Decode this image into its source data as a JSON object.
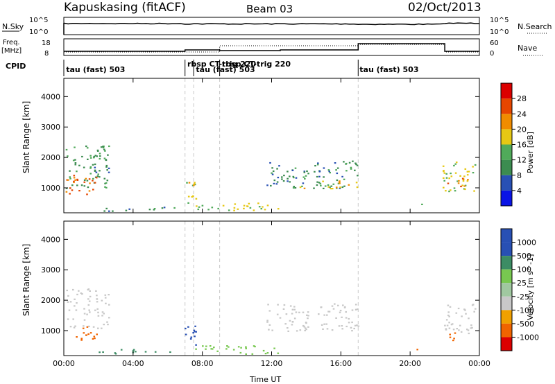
{
  "header": {
    "station": "Kapuskasing (fitACF)",
    "beam": "Beam 03",
    "date": "02/Oct/2013"
  },
  "strip_panels": {
    "nsky": {
      "label": "N.Sky",
      "ticks": [
        "10^5",
        "10^0"
      ]
    },
    "nsearch": {
      "label": "N.Search",
      "ticks": [
        "10^5",
        "10^0"
      ]
    },
    "freq": {
      "label_line1": "Freq.",
      "label_line2": "[MHz]",
      "ticks": [
        "18",
        "8"
      ]
    },
    "nave": {
      "label": "Nave",
      "ticks": [
        "60",
        "0"
      ]
    },
    "cpid": {
      "label": "CPID"
    }
  },
  "cpid_labels": [
    {
      "text": "tau (fast) 503",
      "hour": 0.05
    },
    {
      "text": "rbsp CT-trig 220",
      "hour": 7.05
    },
    {
      "text": "tau (fast) 503",
      "hour": 7.55
    },
    {
      "text": "rbsp CT-trig 220",
      "hour": 9.05
    },
    {
      "text": "tau (fast) 503",
      "hour": 17.0
    }
  ],
  "cpid_boundaries_hours": [
    7.0,
    7.5,
    9.0,
    17.0
  ],
  "colors": {
    "grey_line": "#c8c8c8",
    "power_scale": [
      "#0a14e6",
      "#2850b4",
      "#3c8c50",
      "#50aa5a",
      "#e6c814",
      "#f08c00",
      "#e64600",
      "#dc0000"
    ],
    "velocity_scale": [
      "#dc0000",
      "#f06400",
      "#f0a000",
      "#c8c8c8",
      "#a0c8a0",
      "#78c850",
      "#3c8c64",
      "#2850b4"
    ]
  },
  "chart_data": [
    {
      "type": "heatmap",
      "name": "power",
      "title": "",
      "xlabel": "",
      "ylabel": "Slant Range [km]",
      "xlim": [
        "00:00",
        "24:00"
      ],
      "ylim": [
        180,
        4600
      ],
      "x_ticks": [
        "00:00",
        "04:00",
        "08:00",
        "12:00",
        "16:00",
        "20:00",
        "00:00"
      ],
      "y_ticks": [
        1000,
        2000,
        3000,
        4000
      ],
      "colorbar": {
        "label": "Power [dB]",
        "min": 0,
        "max": 32,
        "ticks": [
          4,
          8,
          12,
          16,
          20,
          24,
          28
        ]
      },
      "blobs": [
        {
          "t0": 0.1,
          "t1": 2.6,
          "r0": 1000,
          "r1": 2400,
          "v": 12
        },
        {
          "t0": 0.1,
          "t1": 2.0,
          "r0": 800,
          "r1": 1500,
          "v": 24
        },
        {
          "t0": 1.6,
          "t1": 2.6,
          "r0": 1500,
          "r1": 2100,
          "v": 8
        },
        {
          "t0": 2.0,
          "t1": 6.5,
          "r0": 250,
          "r1": 400,
          "v": 10
        },
        {
          "t0": 6.8,
          "t1": 7.6,
          "r0": 500,
          "r1": 1300,
          "v": 18
        },
        {
          "t0": 7.5,
          "t1": 12.5,
          "r0": 250,
          "r1": 550,
          "v": 16
        },
        {
          "t0": 11.7,
          "t1": 17.0,
          "r0": 1000,
          "r1": 1900,
          "v": 10
        },
        {
          "t0": 13.5,
          "t1": 17.0,
          "r0": 1000,
          "r1": 1300,
          "v": 18
        },
        {
          "t0": 20.3,
          "t1": 20.9,
          "r0": 400,
          "r1": 500,
          "v": 12
        },
        {
          "t0": 21.8,
          "t1": 23.8,
          "r0": 900,
          "r1": 1900,
          "v": 16
        },
        {
          "t0": 22.0,
          "t1": 23.5,
          "r0": 1000,
          "r1": 1400,
          "v": 22
        }
      ]
    },
    {
      "type": "heatmap",
      "name": "velocity",
      "title": "",
      "xlabel": "Time UT",
      "ylabel": "Slant Range [km]",
      "xlim": [
        "00:00",
        "24:00"
      ],
      "ylim": [
        180,
        4600
      ],
      "x_ticks": [
        "00:00",
        "04:00",
        "08:00",
        "12:00",
        "16:00",
        "20:00",
        "00:00"
      ],
      "y_ticks": [
        1000,
        2000,
        3000,
        4000
      ],
      "colorbar": {
        "label": "Velocity [m s^-1]",
        "ticks": [
          "1000",
          "500",
          "100",
          "25",
          "-25",
          "-100",
          "-500",
          "-1000"
        ]
      },
      "blobs": [
        {
          "t0": 0.1,
          "t1": 2.6,
          "r0": 1100,
          "r1": 2400,
          "v": 3
        },
        {
          "t0": 0.5,
          "t1": 2.0,
          "r0": 700,
          "r1": 1200,
          "v": 1
        },
        {
          "t0": 2.0,
          "t1": 6.5,
          "r0": 250,
          "r1": 400,
          "v": 6
        },
        {
          "t0": 6.8,
          "t1": 7.6,
          "r0": 500,
          "r1": 1300,
          "v": 7
        },
        {
          "t0": 7.5,
          "t1": 12.5,
          "r0": 250,
          "r1": 550,
          "v": 5
        },
        {
          "t0": 11.7,
          "t1": 17.0,
          "r0": 1000,
          "r1": 1900,
          "v": 3
        },
        {
          "t0": 20.3,
          "t1": 20.9,
          "r0": 400,
          "r1": 500,
          "v": 1
        },
        {
          "t0": 21.8,
          "t1": 23.8,
          "r0": 900,
          "r1": 1900,
          "v": 3
        },
        {
          "t0": 22.0,
          "t1": 23.0,
          "r0": 700,
          "r1": 1000,
          "v": 1
        }
      ]
    }
  ]
}
